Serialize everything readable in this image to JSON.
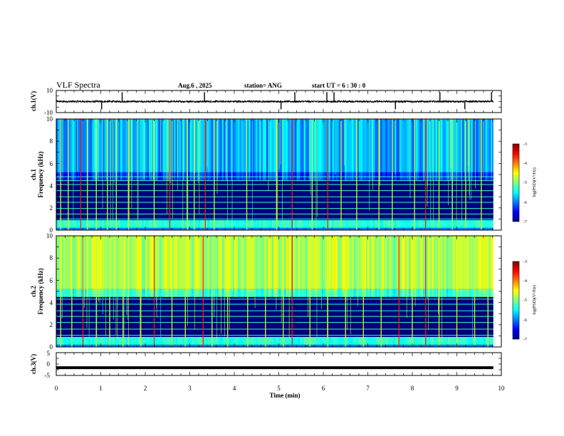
{
  "header": {
    "title": "VLF Spectra",
    "date": "Aug.6  , 2025",
    "station": "station= ANG",
    "start": "start  UT =   6  : 30 : 0"
  },
  "chart_data": [
    {
      "type": "line",
      "name": "ch1-waveform",
      "ylabel": "ch.1(V)",
      "ylim": [
        -10,
        10
      ],
      "yticks": [
        10,
        -10
      ],
      "xlim": [
        0,
        10
      ],
      "baseline": 0,
      "spikes_min": [
        1.02,
        1.48,
        3.33,
        5.05,
        5.36,
        6.08,
        6.24,
        7.62,
        8.62,
        9.18,
        9.78
      ]
    },
    {
      "type": "heatmap",
      "name": "ch1-spectrogram",
      "ylabel": "Frequency (kHz)",
      "channel_label": "ch.1",
      "ylim": [
        0,
        10
      ],
      "yticks": [
        0,
        2,
        4,
        6,
        8,
        10
      ],
      "xlim": [
        0,
        10
      ],
      "data_end_min": 9.82,
      "colorbar": {
        "range": [
          -7,
          -3
        ],
        "ticks": [
          -3,
          -4,
          -5,
          -6,
          -7
        ],
        "label": "log(PSD)(V²/Hz)"
      },
      "hum_lines_khz": [
        0.55,
        1.0,
        1.45,
        1.95,
        2.5,
        3.0,
        3.55,
        4.1,
        4.45,
        4.8
      ],
      "sferic_min": [
        0.1,
        0.27,
        0.55,
        0.7,
        0.9,
        1.15,
        1.35,
        1.62,
        2.2,
        2.55,
        2.95,
        3.1,
        3.35,
        3.55,
        4.28,
        4.95,
        5.3,
        5.75,
        6.1,
        6.4,
        6.75,
        7.25,
        7.55,
        8.05,
        8.3,
        8.6,
        8.9,
        9.2,
        9.55
      ],
      "strong_min": [
        0.55,
        2.55,
        3.35,
        5.3,
        6.1,
        8.3
      ]
    },
    {
      "type": "heatmap",
      "name": "ch2-spectrogram",
      "ylabel": "Frequency (kHz)",
      "channel_label": "ch.2",
      "ylim": [
        0,
        10
      ],
      "yticks": [
        0,
        2,
        4,
        6,
        8,
        10
      ],
      "xlim": [
        0,
        10
      ],
      "data_end_min": 9.82,
      "colorbar": {
        "range": [
          -7,
          -3
        ],
        "ticks": [
          -3,
          -4,
          -5,
          -6,
          -7
        ],
        "label": "log(PSD)(V²/Hz)"
      },
      "hum_lines_khz": [
        0.85,
        1.05,
        1.6,
        2.2,
        2.75,
        3.25,
        3.85,
        4.3,
        4.7
      ],
      "sferic_min": [
        0.1,
        0.35,
        0.6,
        0.9,
        1.2,
        1.5,
        1.9,
        2.2,
        2.6,
        2.9,
        3.3,
        3.5,
        3.85,
        4.3,
        4.7,
        5.1,
        5.3,
        5.7,
        6.1,
        6.5,
        6.9,
        7.3,
        7.7,
        8.0,
        8.3,
        8.6,
        9.0,
        9.4,
        9.7
      ],
      "strong_min": [
        0.6,
        2.2,
        3.3,
        5.3,
        7.7,
        8.3
      ]
    },
    {
      "type": "line",
      "name": "ch3-waveform",
      "ylabel": "ch.3(V)",
      "ylim": [
        -5,
        5
      ],
      "yticks": [
        5,
        0,
        -5
      ],
      "xlim": [
        0,
        10
      ],
      "level": -1.6,
      "xlabel": "Time (min)",
      "xticks": [
        0,
        1,
        2,
        3,
        4,
        5,
        6,
        7,
        8,
        9,
        10
      ]
    }
  ]
}
